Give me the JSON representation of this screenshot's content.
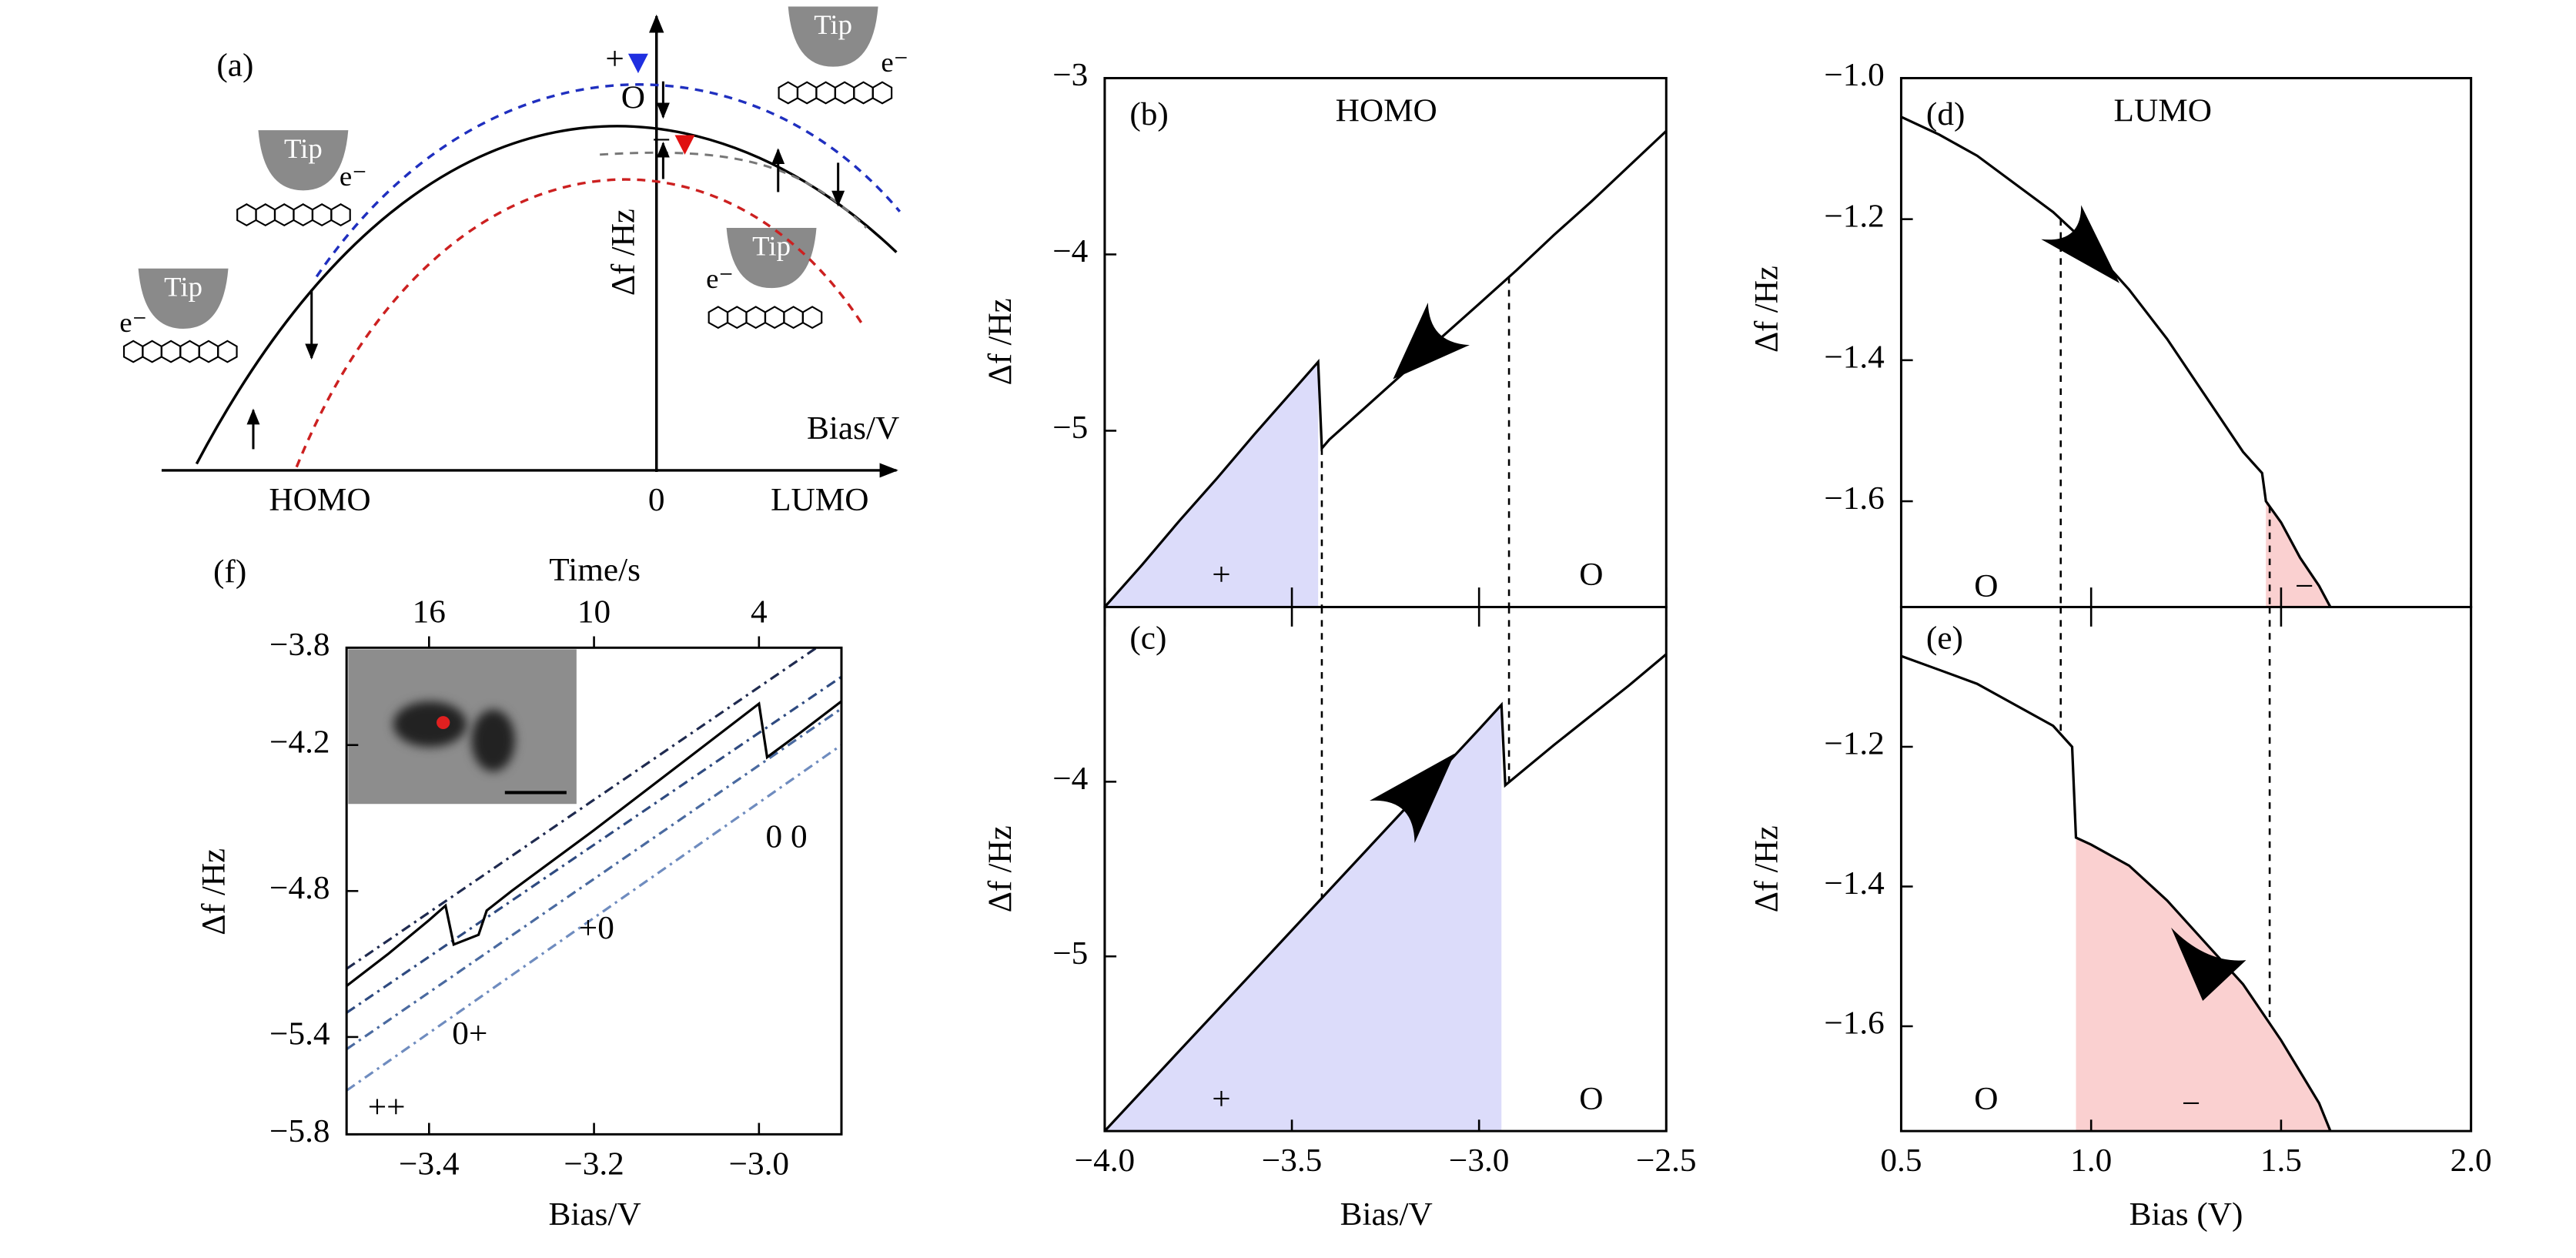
{
  "diagram": {
    "label": "(a)",
    "tips": [
      "Tip",
      "Tip",
      "Tip",
      "Tip"
    ],
    "electrons": [
      "e⁻",
      "e⁻",
      "e⁻",
      "e⁻"
    ],
    "charges": [
      "+",
      "O",
      "−"
    ],
    "y_axis": "Δf /Hz",
    "x_axis": "Bias/V",
    "levels": [
      "HOMO",
      "0",
      "LUMO"
    ]
  },
  "chart_data": [
    {
      "type": "line",
      "label": "(b)",
      "title": "HOMO",
      "y_label": "Δf /Hz",
      "xlim": [
        -4.0,
        -2.5
      ],
      "ylim": [
        -6,
        -3
      ],
      "yticks": [
        {
          "value": -3,
          "label": "−3"
        },
        {
          "value": -4,
          "label": "−4"
        },
        {
          "value": -5,
          "label": "−5"
        }
      ],
      "series": [
        {
          "color": "#000000",
          "x": [
            -4.0,
            -3.9,
            -3.8,
            -3.7,
            -3.6,
            -3.5,
            -3.43,
            -3.42,
            -3.4,
            -3.3,
            -3.2,
            -3.1,
            -3.0,
            -2.9,
            -2.8,
            -2.7,
            -2.6,
            -2.5
          ],
          "values": [
            -6.0,
            -5.76,
            -5.51,
            -5.27,
            -5.02,
            -4.78,
            -4.61,
            -5.1,
            -5.05,
            -4.86,
            -4.67,
            -4.47,
            -4.28,
            -4.09,
            -3.89,
            -3.7,
            -3.5,
            -3.3
          ]
        }
      ],
      "shade": {
        "from": -4.0,
        "to": -3.43,
        "color": "#dcdcfa"
      },
      "markers": [
        -3.42,
        -2.92
      ],
      "annotations": [
        "+",
        "O"
      ]
    },
    {
      "type": "line",
      "label": "(c)",
      "y_label": "Δf /Hz",
      "x_label": "Bias/V",
      "xlim": [
        -4.0,
        -2.5
      ],
      "ylim": [
        -6,
        -3
      ],
      "xticks": [
        {
          "value": -4.0,
          "label": "−4.0"
        },
        {
          "value": -3.5,
          "label": "−3.5"
        },
        {
          "value": -3.0,
          "label": "−3.0"
        },
        {
          "value": -2.5,
          "label": "−2.5"
        }
      ],
      "yticks": [
        {
          "value": -4,
          "label": "−4"
        },
        {
          "value": -5,
          "label": "−5"
        }
      ],
      "series": [
        {
          "color": "#000000",
          "x": [
            -4.0,
            -3.8,
            -3.6,
            -3.4,
            -3.2,
            -3.0,
            -2.94,
            -2.93,
            -2.8,
            -2.7,
            -2.6,
            -2.5
          ],
          "values": [
            -6.0,
            -5.54,
            -5.08,
            -4.62,
            -4.16,
            -3.7,
            -3.56,
            -4.02,
            -3.79,
            -3.62,
            -3.45,
            -3.27
          ]
        }
      ],
      "shade": {
        "from": -4.0,
        "to": -2.94,
        "color": "#dcdcfa"
      },
      "markers": [
        -3.42,
        -2.92
      ],
      "annotations": [
        "+",
        "O"
      ]
    },
    {
      "type": "line",
      "label": "(d)",
      "title": "LUMO",
      "y_label": "Δf /Hz",
      "xlim": [
        0.5,
        2.0
      ],
      "ylim": [
        -1.75,
        -1.0
      ],
      "yticks": [
        {
          "value": -1.0,
          "label": "−1.0"
        },
        {
          "value": -1.2,
          "label": "−1.2"
        },
        {
          "value": -1.4,
          "label": "−1.4"
        },
        {
          "value": -1.6,
          "label": "−1.6"
        }
      ],
      "series": [
        {
          "color": "#000000",
          "x": [
            0.5,
            0.6,
            0.7,
            0.8,
            0.9,
            1.0,
            1.1,
            1.2,
            1.3,
            1.4,
            1.45,
            1.46,
            1.5,
            1.55,
            1.6,
            1.63
          ],
          "values": [
            -1.055,
            -1.08,
            -1.11,
            -1.15,
            -1.19,
            -1.24,
            -1.3,
            -1.37,
            -1.45,
            -1.53,
            -1.56,
            -1.6,
            -1.63,
            -1.68,
            -1.72,
            -1.75
          ]
        }
      ],
      "shade": {
        "from": 1.46,
        "to": 1.63,
        "color": "#fad0d0"
      },
      "markers": [
        0.92,
        1.47
      ],
      "annotations": [
        "O",
        "−"
      ]
    },
    {
      "type": "line",
      "label": "(e)",
      "y_label": "Δf /Hz",
      "x_label": "Bias (V)",
      "xlim": [
        0.5,
        2.0
      ],
      "ylim": [
        -1.75,
        -1.0
      ],
      "xticks": [
        0.5,
        {
          "value": 1.0,
          "label": "1.0"
        },
        1.5,
        {
          "value": 2.0,
          "label": "2.0"
        }
      ],
      "yticks": [
        {
          "value": -1.2,
          "label": "−1.2"
        },
        {
          "value": -1.4,
          "label": "−1.4"
        },
        {
          "value": -1.6,
          "label": "−1.6"
        }
      ],
      "series": [
        {
          "color": "#000000",
          "x": [
            0.5,
            0.6,
            0.7,
            0.8,
            0.9,
            0.95,
            0.96,
            1.0,
            1.1,
            1.2,
            1.3,
            1.4,
            1.5,
            1.6,
            1.63
          ],
          "values": [
            -1.07,
            -1.09,
            -1.11,
            -1.14,
            -1.17,
            -1.2,
            -1.33,
            -1.34,
            -1.37,
            -1.42,
            -1.48,
            -1.54,
            -1.62,
            -1.71,
            -1.75
          ]
        }
      ],
      "shade": {
        "from": 0.96,
        "to": 1.63,
        "color": "#fad0d0"
      },
      "markers": [
        0.92,
        1.47
      ],
      "annotations": [
        "O",
        "−"
      ]
    },
    {
      "type": "line",
      "label": "(f)",
      "y_label": "Δf /Hz",
      "x_label": "Bias/V",
      "x2_label": "Time/s",
      "xlim": [
        -3.5,
        -2.9
      ],
      "ylim": [
        -5.8,
        -3.8
      ],
      "xticks": [
        {
          "value": -3.4,
          "label": "−3.4"
        },
        {
          "value": -3.2,
          "label": "−3.2"
        },
        {
          "value": -3.0,
          "label": "−3.0"
        }
      ],
      "x2lim": [
        19,
        1
      ],
      "x2ticks": [
        16,
        10,
        4
      ],
      "yticks": [
        {
          "value": -3.8,
          "label": "−3.8"
        },
        {
          "value": -4.2,
          "label": "−4.2"
        },
        {
          "value": -4.8,
          "label": "−4.8"
        },
        {
          "value": -5.4,
          "label": "−5.4"
        },
        {
          "value": -5.8,
          "label": "−5.8"
        }
      ],
      "series": [
        {
          "color": "#1f2a4f",
          "style": "dashed",
          "x": [
            -3.5,
            -2.93
          ],
          "values": [
            -5.12,
            -3.8
          ]
        },
        {
          "color": "#2e4a80",
          "style": "dashed",
          "x": [
            -3.5,
            -2.9
          ],
          "values": [
            -5.3,
            -3.92
          ]
        },
        {
          "color": "#4a6aa0",
          "style": "dashed",
          "x": [
            -3.5,
            -2.9
          ],
          "values": [
            -5.45,
            -4.05
          ]
        },
        {
          "color": "#6f8cbf",
          "style": "dashed",
          "x": [
            -3.5,
            -2.9
          ],
          "values": [
            -5.62,
            -4.2
          ]
        },
        {
          "color": "#000000",
          "x": [
            -3.5,
            -3.45,
            -3.4,
            -3.38,
            -3.37,
            -3.34,
            -3.33,
            -3.3,
            -3.2,
            -3.1,
            -3.0,
            -2.99,
            -2.95,
            -2.9
          ],
          "values": [
            -5.19,
            -5.06,
            -4.92,
            -4.86,
            -5.02,
            -4.98,
            -4.88,
            -4.8,
            -4.55,
            -4.29,
            -4.03,
            -4.25,
            -4.15,
            -4.02
          ]
        }
      ],
      "annotations": [
        "0 0",
        "+0",
        "0+",
        "++"
      ]
    }
  ]
}
